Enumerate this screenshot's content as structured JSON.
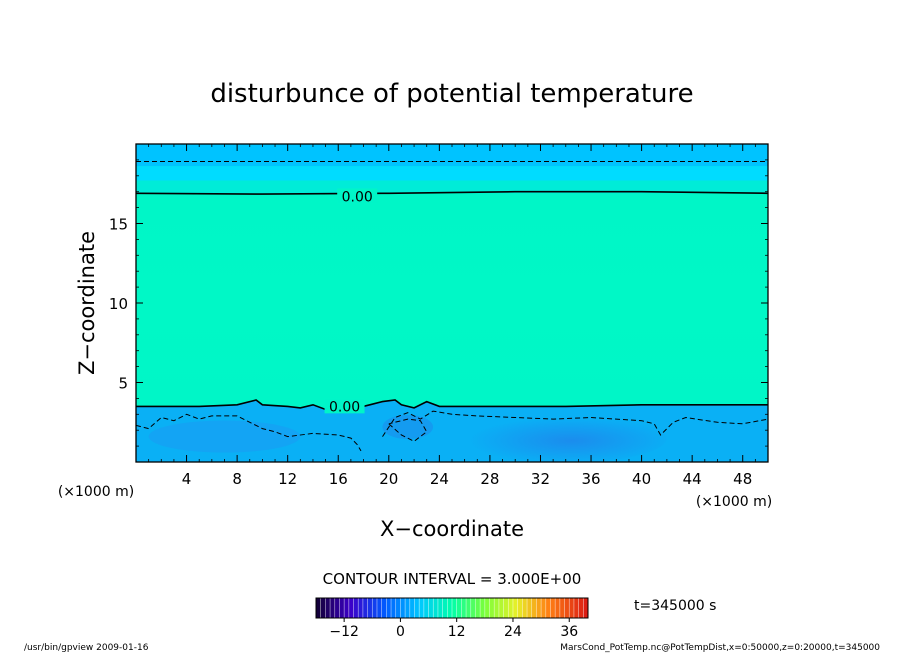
{
  "chart_data": {
    "type": "contour",
    "title": "disturbunce of potential temperature",
    "xlabel": "X−coordinate",
    "ylabel": "Z−coordinate",
    "x_unit_left": "(×1000 m)",
    "x_unit_right": "(×1000 m)",
    "xlim": [
      0,
      50
    ],
    "ylim": [
      0,
      20
    ],
    "x_ticks": [
      {
        "v": 4,
        "label": "4"
      },
      {
        "v": 8,
        "label": "8"
      },
      {
        "v": 12,
        "label": "12"
      },
      {
        "v": 16,
        "label": "16"
      },
      {
        "v": 20,
        "label": "20"
      },
      {
        "v": 24,
        "label": "24"
      },
      {
        "v": 28,
        "label": "28"
      },
      {
        "v": 32,
        "label": "32"
      },
      {
        "v": 36,
        "label": "36"
      },
      {
        "v": 40,
        "label": "40"
      },
      {
        "v": 44,
        "label": "44"
      },
      {
        "v": 48,
        "label": "48"
      }
    ],
    "y_ticks": [
      {
        "v": 5,
        "label": "5"
      },
      {
        "v": 10,
        "label": "10"
      },
      {
        "v": 15,
        "label": "15"
      }
    ],
    "contour_interval": "CONTOUR INTERVAL = 3.000E+00",
    "contour_labels": [
      {
        "text": "0.00",
        "x": 17.5,
        "z": 16.7
      },
      {
        "text": "0.00",
        "x": 16.5,
        "z": 3.5
      }
    ],
    "zero_contour_upper": [
      [
        0,
        16.9
      ],
      [
        10,
        16.85
      ],
      [
        20,
        16.9
      ],
      [
        30,
        17.0
      ],
      [
        40,
        17.0
      ],
      [
        50,
        16.9
      ]
    ],
    "zero_contour_lower": [
      [
        0,
        3.5
      ],
      [
        5,
        3.5
      ],
      [
        8,
        3.6
      ],
      [
        9.5,
        3.9
      ],
      [
        10,
        3.6
      ],
      [
        12,
        3.5
      ],
      [
        13,
        3.4
      ],
      [
        14,
        3.6
      ],
      [
        15,
        3.3
      ],
      [
        17,
        3.3
      ],
      [
        18.5,
        3.6
      ],
      [
        19.5,
        3.8
      ],
      [
        20.5,
        3.9
      ],
      [
        21,
        3.6
      ],
      [
        22,
        3.4
      ],
      [
        23,
        3.8
      ],
      [
        24,
        3.5
      ],
      [
        28,
        3.5
      ],
      [
        34,
        3.5
      ],
      [
        40,
        3.6
      ],
      [
        45,
        3.6
      ],
      [
        50,
        3.6
      ]
    ],
    "dashed_contour_top": [
      [
        0,
        18.9
      ],
      [
        50,
        18.9
      ]
    ],
    "dashed_contours_low": [
      [
        [
          0,
          2.3
        ],
        [
          1,
          2.1
        ],
        [
          2,
          2.8
        ],
        [
          3,
          2.6
        ],
        [
          4,
          3.0
        ],
        [
          5,
          2.7
        ],
        [
          6,
          2.9
        ],
        [
          8,
          2.9
        ],
        [
          9,
          2.5
        ],
        [
          10,
          2.1
        ],
        [
          11,
          1.9
        ],
        [
          12,
          1.6
        ],
        [
          14,
          1.8
        ],
        [
          16,
          1.7
        ],
        [
          17,
          1.5
        ],
        [
          17.5,
          1.1
        ],
        [
          17.8,
          0.7
        ]
      ],
      [
        [
          19.5,
          1.6
        ],
        [
          20.5,
          2.8
        ],
        [
          21.5,
          3.1
        ],
        [
          22.5,
          2.7
        ],
        [
          23.5,
          3.2
        ],
        [
          25,
          3.0
        ],
        [
          27,
          2.9
        ],
        [
          30,
          2.8
        ],
        [
          33,
          2.7
        ],
        [
          36,
          2.8
        ],
        [
          38,
          2.7
        ],
        [
          40,
          2.6
        ],
        [
          41,
          2.4
        ],
        [
          41.5,
          1.7
        ],
        [
          42.5,
          2.5
        ],
        [
          43.5,
          2.8
        ],
        [
          46,
          2.5
        ],
        [
          48,
          2.4
        ],
        [
          50,
          2.7
        ]
      ],
      [
        [
          20,
          2.4
        ],
        [
          21,
          1.7
        ],
        [
          22,
          1.3
        ],
        [
          23,
          1.9
        ],
        [
          22.5,
          2.6
        ],
        [
          21.5,
          2.7
        ],
        [
          20,
          2.4
        ]
      ]
    ],
    "colorbar": {
      "ticks": [
        {
          "v": -12,
          "label": "−12"
        },
        {
          "v": 0,
          "label": "0"
        },
        {
          "v": 12,
          "label": "12"
        },
        {
          "v": 24,
          "label": "24"
        },
        {
          "v": 36,
          "label": "36"
        }
      ],
      "range": [
        -18,
        40
      ]
    },
    "time_label": "t=345000 s",
    "palette": {
      "band_top": "#00c3ff",
      "band_upper": "#00dcff",
      "band_upper2": "#00ecd8",
      "main_field": "#00f5c8",
      "main_field_center": "#00f8c6",
      "lower_layer": "#0ab0f5",
      "lower_deep": "#1e86ec",
      "lower_mid": "#1c9af2"
    }
  },
  "footer": {
    "left": "/usr/bin/gpview   2009-01-16",
    "right": "MarsCond_PotTemp.nc@PotTempDist,x=0:50000,z=0:20000,t=345000"
  }
}
